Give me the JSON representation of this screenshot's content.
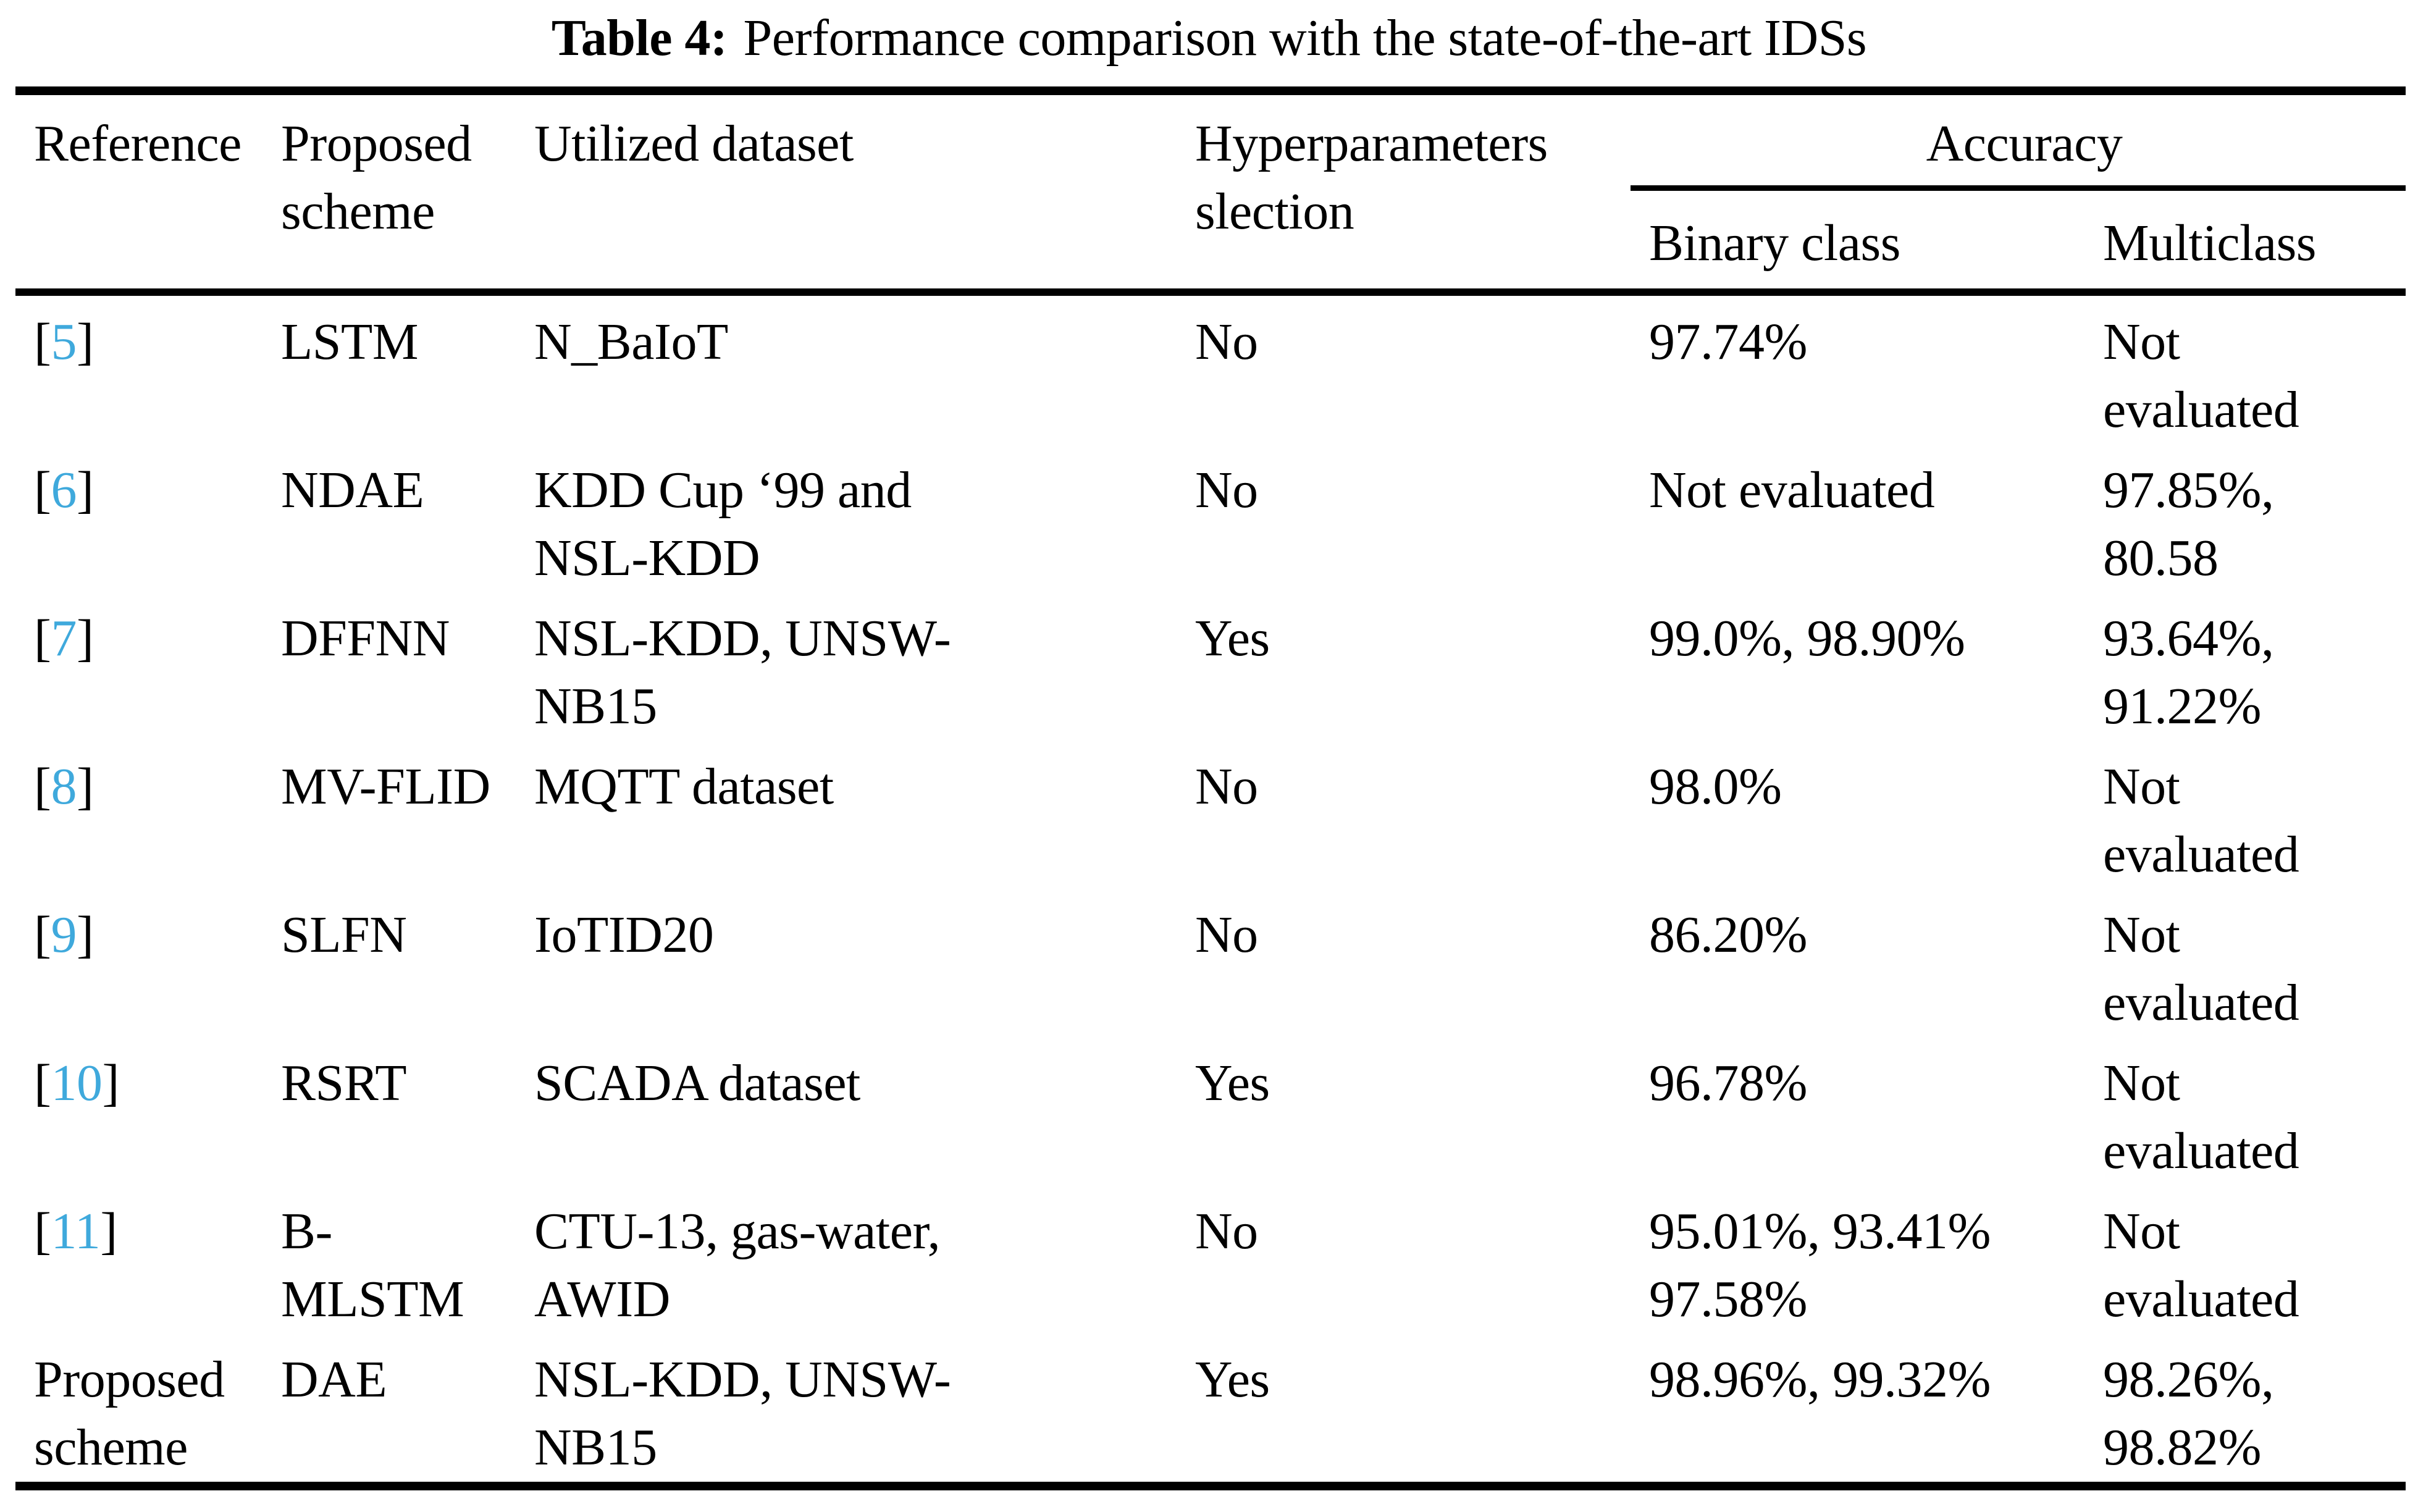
{
  "caption": {
    "label": "Table 4:",
    "text": "Performance comparison with the state-of-the-art IDSs"
  },
  "header": {
    "reference": "Reference",
    "proposed_scheme": "Proposed\nscheme",
    "utilized_dataset": "Utilized dataset",
    "hyperparameters": "Hyperparameters\nslection",
    "accuracy": "Accuracy",
    "binary_class": "Binary class",
    "multiclass": "Multiclass"
  },
  "colors": {
    "citation": "#3fa9dc",
    "text": "#000000",
    "background": "#ffffff"
  },
  "rows": [
    {
      "ref_open": "[",
      "ref": "5",
      "ref_close": "]",
      "scheme": "LSTM",
      "dataset": "N_BaIoT",
      "hyperparams": "No",
      "acc_binary": "97.74%",
      "acc_multi": "Not\nevaluated"
    },
    {
      "ref_open": "[",
      "ref": "6",
      "ref_close": "]",
      "scheme": "NDAE",
      "dataset": "KDD Cup ‘99 and\nNSL-KDD",
      "hyperparams": "No",
      "acc_binary": "Not evaluated",
      "acc_multi": "97.85%,\n80.58"
    },
    {
      "ref_open": "[",
      "ref": "7",
      "ref_close": "]",
      "scheme": "DFFNN",
      "dataset": "NSL-KDD, UNSW-\nNB15",
      "hyperparams": "Yes",
      "acc_binary": "99.0%, 98.90%",
      "acc_multi": "93.64%,\n91.22%"
    },
    {
      "ref_open": "[",
      "ref": "8",
      "ref_close": "]",
      "scheme": "MV-FLID",
      "dataset": "MQTT dataset",
      "hyperparams": "No",
      "acc_binary": "98.0%",
      "acc_multi": "Not\nevaluated"
    },
    {
      "ref_open": "[",
      "ref": "9",
      "ref_close": "]",
      "scheme": "SLFN",
      "dataset": "IoTID20",
      "hyperparams": "No",
      "acc_binary": "86.20%",
      "acc_multi": "Not\nevaluated"
    },
    {
      "ref_open": "[",
      "ref": "10",
      "ref_close": "]",
      "scheme": "RSRT",
      "dataset": "SCADA dataset",
      "hyperparams": "Yes",
      "acc_binary": "96.78%",
      "acc_multi": "Not\nevaluated"
    },
    {
      "ref_open": "[",
      "ref": "11",
      "ref_close": "]",
      "scheme": "B-MLSTM",
      "dataset": "CTU-13, gas-water,\nAWID",
      "hyperparams": "No",
      "acc_binary": "95.01%, 93.41%\n97.58%",
      "acc_multi": "Not\nevaluated"
    },
    {
      "ref_open": "Proposed\nscheme",
      "ref": "",
      "ref_close": "",
      "scheme": "DAE",
      "dataset": "NSL-KDD, UNSW-\nNB15",
      "hyperparams": "Yes",
      "acc_binary": "98.96%, 99.32%",
      "acc_multi": "98.26%,\n98.82%"
    }
  ]
}
